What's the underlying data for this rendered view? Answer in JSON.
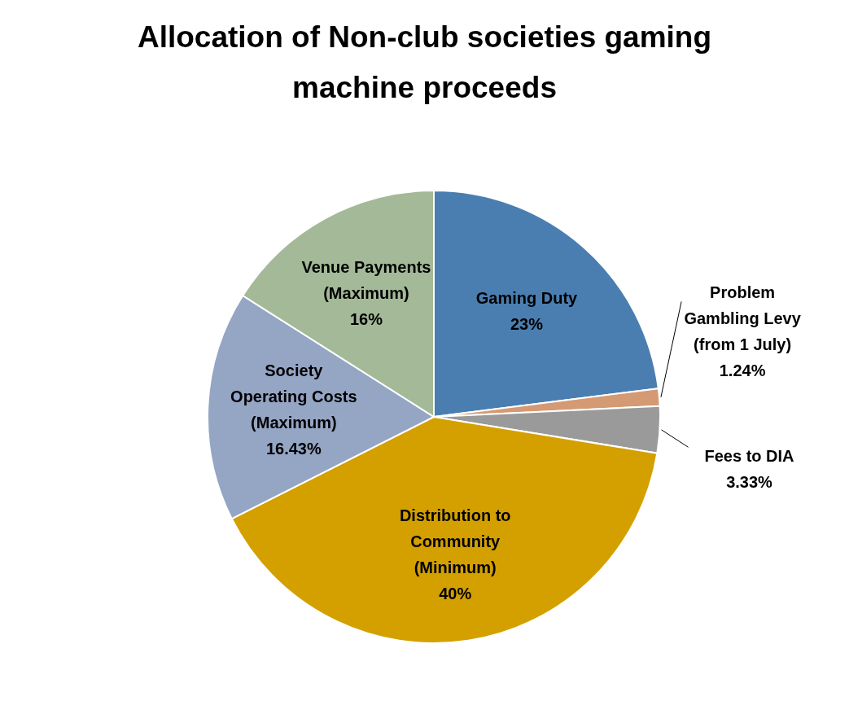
{
  "chart_data": {
    "type": "pie",
    "title": "Allocation of Non-club societies gaming\nmachine proceeds",
    "categories": [
      "Gaming Duty",
      "Problem\nGambling Levy\n(from 1 July)",
      "Fees to DIA",
      "Distribution to\nCommunity\n(Minimum)",
      "Society\nOperating Costs\n(Maximum)",
      "Venue Payments\n(Maximum)"
    ],
    "values": [
      23,
      1.24,
      3.33,
      40,
      16.43,
      16
    ],
    "value_labels": [
      "23%",
      "1.24%",
      "3.33%",
      "40%",
      "16.43%",
      "16%"
    ],
    "colors": [
      "#4a7eb1",
      "#d49a74",
      "#9a9a9a",
      "#d4a000",
      "#95a5c4",
      "#a3b997"
    ],
    "legend": false
  }
}
